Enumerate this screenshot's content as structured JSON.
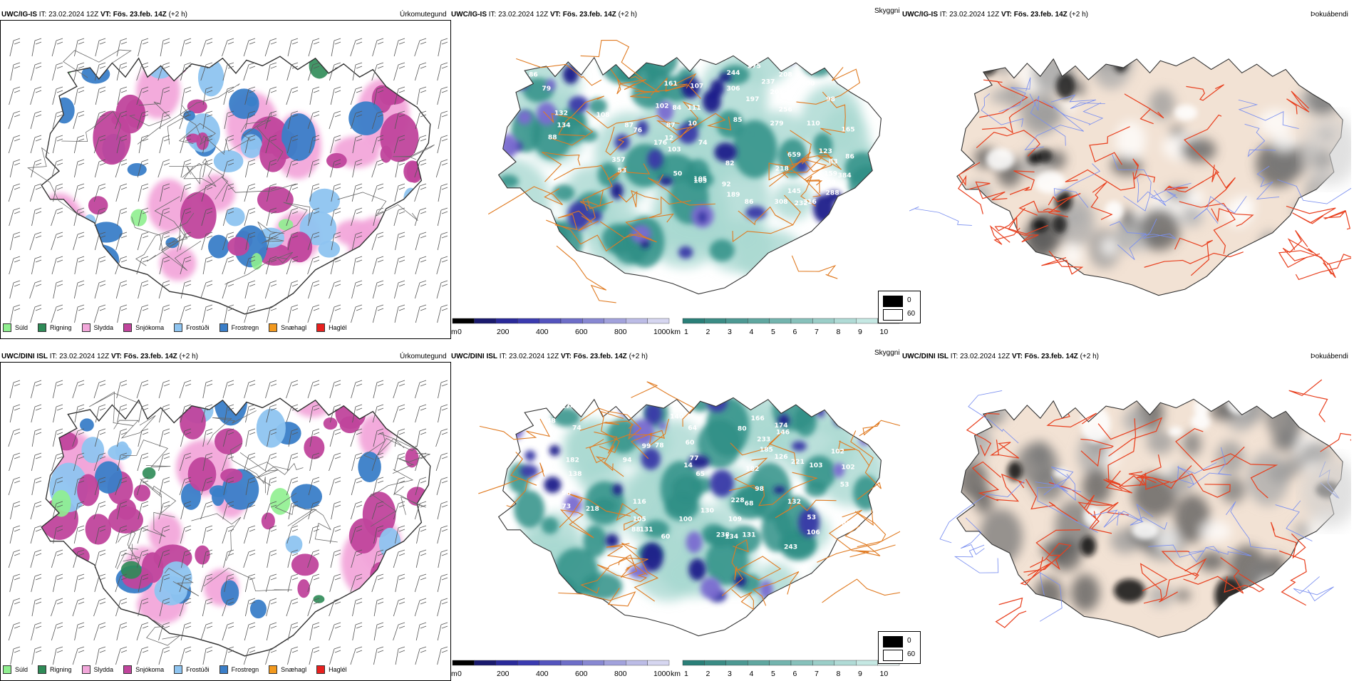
{
  "rows": [
    {
      "model": "UWC/IG-IS",
      "it_label": "IT:",
      "it": "23.02.2024 12Z",
      "vt_label": "VT:",
      "vt": "Fös. 23.feb. 14Z",
      "offset": "(+2 h)",
      "panel_titles": [
        "Úrkomutegund",
        "Skyggni",
        "Þokuábendi"
      ],
      "labels": [
        {
          "t": "105"
        },
        {
          "t": "86"
        },
        {
          "t": "79"
        },
        {
          "t": "98"
        },
        {
          "t": "53"
        },
        {
          "t": "67"
        },
        {
          "t": "132"
        },
        {
          "t": "134"
        },
        {
          "t": "88"
        },
        {
          "t": "108"
        },
        {
          "t": "357"
        },
        {
          "t": "87"
        },
        {
          "t": "53"
        },
        {
          "t": "76"
        },
        {
          "t": "50"
        },
        {
          "t": "103"
        },
        {
          "t": "12"
        },
        {
          "t": "74"
        },
        {
          "t": "176"
        },
        {
          "t": "102"
        },
        {
          "t": "84"
        },
        {
          "t": "87"
        },
        {
          "t": "111"
        },
        {
          "t": "10"
        },
        {
          "t": "161"
        },
        {
          "t": "107"
        },
        {
          "t": "244"
        },
        {
          "t": "306"
        },
        {
          "t": "197"
        },
        {
          "t": "275"
        },
        {
          "t": "208"
        },
        {
          "t": "237"
        },
        {
          "t": "100"
        },
        {
          "t": "207"
        },
        {
          "t": "256"
        },
        {
          "t": "85"
        },
        {
          "t": "279"
        },
        {
          "t": "110"
        },
        {
          "t": "98"
        },
        {
          "t": "105"
        },
        {
          "t": "123"
        },
        {
          "t": "83"
        },
        {
          "t": "659"
        },
        {
          "t": "218"
        },
        {
          "t": "82"
        },
        {
          "t": "92"
        },
        {
          "t": "189"
        },
        {
          "t": "86"
        },
        {
          "t": "105"
        },
        {
          "t": "145"
        },
        {
          "t": "308"
        },
        {
          "t": "232"
        },
        {
          "t": "316"
        },
        {
          "t": "288"
        },
        {
          "t": "180"
        },
        {
          "t": "159"
        },
        {
          "t": "384"
        },
        {
          "t": "86"
        },
        {
          "t": "165"
        }
      ]
    },
    {
      "model": "UWC/DINI ISL",
      "it_label": "IT:",
      "it": "23.02.2024 12Z",
      "vt_label": "VT:",
      "vt": "Fös. 23.feb. 14Z",
      "offset": "(+2 h)",
      "panel_titles": [
        "Úrkomutegund",
        "Skyggni",
        "Þokuábendi"
      ],
      "labels": [
        {
          "t": "139"
        },
        {
          "t": "174"
        },
        {
          "t": "148"
        },
        {
          "t": "74"
        },
        {
          "t": "182"
        },
        {
          "t": "138"
        },
        {
          "t": "96"
        },
        {
          "t": "73"
        },
        {
          "t": "218"
        },
        {
          "t": "94"
        },
        {
          "t": "99"
        },
        {
          "t": "78"
        },
        {
          "t": "140"
        },
        {
          "t": "64"
        },
        {
          "t": "60"
        },
        {
          "t": "14"
        },
        {
          "t": "77"
        },
        {
          "t": "65"
        },
        {
          "t": "116"
        },
        {
          "t": "105"
        },
        {
          "t": "88"
        },
        {
          "t": "131"
        },
        {
          "t": "60"
        },
        {
          "t": "100"
        },
        {
          "t": "130"
        },
        {
          "t": "238"
        },
        {
          "t": "134"
        },
        {
          "t": "131"
        },
        {
          "t": "228"
        },
        {
          "t": "109"
        },
        {
          "t": "68"
        },
        {
          "t": "98"
        },
        {
          "t": "166"
        },
        {
          "t": "174"
        },
        {
          "t": "233"
        },
        {
          "t": "146"
        },
        {
          "t": "185"
        },
        {
          "t": "126"
        },
        {
          "t": "221"
        },
        {
          "t": "182"
        },
        {
          "t": "103"
        },
        {
          "t": "132"
        },
        {
          "t": "53"
        },
        {
          "t": "106"
        },
        {
          "t": "243"
        },
        {
          "t": "88"
        },
        {
          "t": "102"
        },
        {
          "t": "53"
        },
        {
          "t": "102"
        },
        {
          "t": "80"
        }
      ]
    }
  ],
  "precip_legend": [
    {
      "label": "Súld",
      "color": "#8fef8f"
    },
    {
      "label": "Rigning",
      "color": "#2e8b57"
    },
    {
      "label": "Slydda",
      "color": "#f2a7da"
    },
    {
      "label": "Snjókoma",
      "color": "#c0449c"
    },
    {
      "label": "Frostúði",
      "color": "#8ec4f0"
    },
    {
      "label": "Frostregn",
      "color": "#3a7ec8"
    },
    {
      "label": "Snæhagl",
      "color": "#f2991e"
    },
    {
      "label": "Haglél",
      "color": "#e8201e"
    }
  ],
  "ceiling_bar": {
    "unit": "m",
    "ticks": [
      "0",
      "200",
      "400",
      "600",
      "800",
      "1000"
    ]
  },
  "vis_bar": {
    "unit": "km",
    "ticks": [
      "1",
      "2",
      "3",
      "4",
      "5",
      "6",
      "7",
      "8",
      "9",
      "10"
    ]
  },
  "fog_key": {
    "ticks": [
      "0",
      "60"
    ]
  },
  "colors": {
    "snow": "#c0449c",
    "sleet": "#f2a7da",
    "drizzle": "#8fef8f",
    "rain": "#2e8b57",
    "freezing_drizzle": "#8ec4f0",
    "freezing_rain": "#3a7ec8",
    "teal": "#2f8f86",
    "teal_light": "#a9d8d1",
    "navy": "#1a1a8a",
    "purple": "#7a6cd0",
    "road": "#e07b22",
    "road_red": "#e8401f",
    "land_tan": "#f2e2d4",
    "river": "#7a8ff0"
  }
}
